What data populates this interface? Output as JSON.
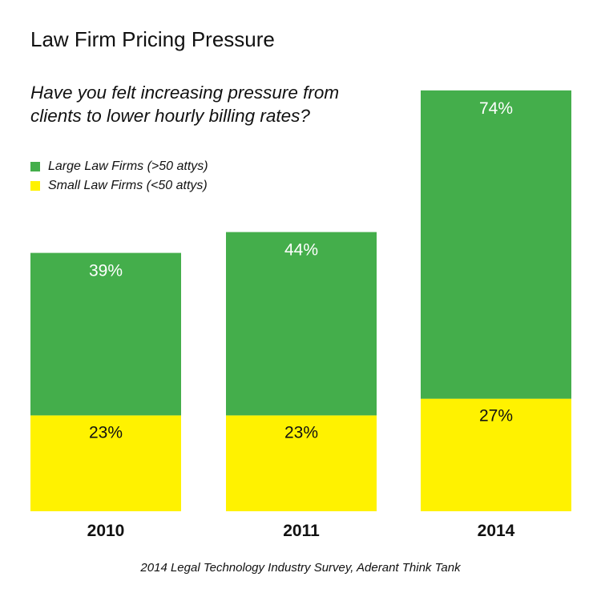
{
  "title": "Law Firm Pricing Pressure",
  "question": "Have you felt increasing pressure from clients to lower hourly billing rates?",
  "source": "2014 Legal Technology Industry Survey, Aderant Think Tank",
  "colors": {
    "large": "#44ae4b",
    "small": "#fff200",
    "label_on_green": "#ffffff",
    "label_on_yellow": "#111111",
    "text": "#111111"
  },
  "chart_data": {
    "type": "bar",
    "stacked": true,
    "categories": [
      "2010",
      "2011",
      "2014"
    ],
    "series": [
      {
        "name": "Small Law Firms (<50 attys)",
        "values": [
          23,
          23,
          27
        ],
        "labels": [
          "23%",
          "23%",
          "27%"
        ],
        "color": "#fff200"
      },
      {
        "name": "Large Law Firms (>50 attys)",
        "values": [
          39,
          44,
          74
        ],
        "labels": [
          "39%",
          "44%",
          "74%"
        ],
        "color": "#44ae4b"
      }
    ],
    "legend": [
      {
        "label": "Large Law Firms (>50 attys)",
        "color": "#44ae4b"
      },
      {
        "label": "Small Law Firms (<50 attys)",
        "color": "#fff200"
      }
    ],
    "legend_position": "top-left",
    "grid": false,
    "ylim": [
      0,
      100
    ],
    "xlabel": "",
    "ylabel": ""
  }
}
